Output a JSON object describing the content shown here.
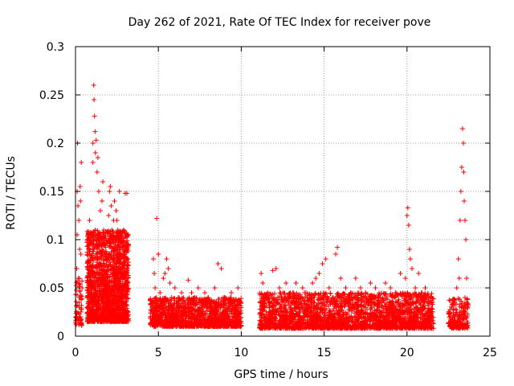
{
  "chart_data": {
    "type": "scatter",
    "title": "Day 262 of 2021, Rate Of TEC Index for receiver pove",
    "xlabel": "GPS time / hours",
    "ylabel": "ROTI / TECUs",
    "xlim": [
      0,
      25
    ],
    "ylim": [
      0,
      0.3
    ],
    "x_ticks": [
      0,
      5,
      10,
      15,
      20,
      25
    ],
    "x_tick_labels": [
      "0",
      "5",
      "10",
      "15",
      "20",
      "25"
    ],
    "y_ticks": [
      0,
      0.05,
      0.1,
      0.15,
      0.2,
      0.25,
      0.3
    ],
    "y_tick_labels": [
      "0",
      "0.05",
      "0.1",
      "0.15",
      "0.2",
      "0.25",
      "0.3"
    ],
    "grid": true,
    "legend": "none",
    "marker": "plus",
    "series_color": "#ff0000",
    "points": [
      [
        0.05,
        0.02
      ],
      [
        0.08,
        0.07
      ],
      [
        0.1,
        0.105
      ],
      [
        0.1,
        0.15
      ],
      [
        0.12,
        0.2
      ],
      [
        0.15,
        0.135
      ],
      [
        0.18,
        0.06
      ],
      [
        0.2,
        0.12
      ],
      [
        0.22,
        0.04
      ],
      [
        0.25,
        0.09
      ],
      [
        0.28,
        0.155
      ],
      [
        0.3,
        0.14
      ],
      [
        0.32,
        0.085
      ],
      [
        0.35,
        0.18
      ],
      [
        0.4,
        0.05
      ],
      [
        0.7,
        0.03
      ],
      [
        0.75,
        0.05
      ],
      [
        0.8,
        0.09
      ],
      [
        0.85,
        0.12
      ],
      [
        0.9,
        0.04
      ],
      [
        0.95,
        0.07
      ],
      [
        1.0,
        0.1
      ],
      [
        1.05,
        0.18
      ],
      [
        1.05,
        0.2
      ],
      [
        1.1,
        0.26
      ],
      [
        1.12,
        0.245
      ],
      [
        1.15,
        0.228
      ],
      [
        1.18,
        0.212
      ],
      [
        1.2,
        0.19
      ],
      [
        1.25,
        0.203
      ],
      [
        1.3,
        0.17
      ],
      [
        1.35,
        0.185
      ],
      [
        1.4,
        0.15
      ],
      [
        1.5,
        0.13
      ],
      [
        1.6,
        0.14
      ],
      [
        1.65,
        0.16
      ],
      [
        1.7,
        0.11
      ],
      [
        1.75,
        0.095
      ],
      [
        1.8,
        0.08
      ],
      [
        1.85,
        0.06
      ],
      [
        1.9,
        0.045
      ],
      [
        1.95,
        0.03
      ],
      [
        2.0,
        0.125
      ],
      [
        2.05,
        0.15
      ],
      [
        2.1,
        0.155
      ],
      [
        2.15,
        0.135
      ],
      [
        2.2,
        0.11
      ],
      [
        2.25,
        0.1
      ],
      [
        2.3,
        0.12
      ],
      [
        2.35,
        0.14
      ],
      [
        2.4,
        0.09
      ],
      [
        2.45,
        0.13
      ],
      [
        2.5,
        0.12
      ],
      [
        2.55,
        0.11
      ],
      [
        2.6,
        0.1
      ],
      [
        2.65,
        0.15
      ],
      [
        2.7,
        0.095
      ],
      [
        2.75,
        0.08
      ],
      [
        2.8,
        0.07
      ],
      [
        2.85,
        0.06
      ],
      [
        2.9,
        0.05
      ],
      [
        3.0,
        0.148
      ],
      [
        3.1,
        0.148
      ],
      [
        1.0,
        0.04
      ],
      [
        1.2,
        0.05
      ],
      [
        1.4,
        0.06
      ],
      [
        1.6,
        0.045
      ],
      [
        1.8,
        0.035
      ],
      [
        2.0,
        0.055
      ],
      [
        2.2,
        0.05
      ],
      [
        2.4,
        0.04
      ],
      [
        2.6,
        0.06
      ],
      [
        2.8,
        0.045
      ],
      [
        3.0,
        0.035
      ],
      [
        1.3,
        0.02
      ],
      [
        1.7,
        0.025
      ],
      [
        2.1,
        0.02
      ],
      [
        2.5,
        0.018
      ],
      [
        2.9,
        0.022
      ],
      [
        4.6,
        0.03
      ],
      [
        4.7,
        0.08
      ],
      [
        4.75,
        0.065
      ],
      [
        4.8,
        0.05
      ],
      [
        4.9,
        0.122
      ],
      [
        5.0,
        0.085
      ],
      [
        5.1,
        0.045
      ],
      [
        5.2,
        0.035
      ],
      [
        5.3,
        0.06
      ],
      [
        5.4,
        0.065
      ],
      [
        5.5,
        0.08
      ],
      [
        5.6,
        0.07
      ],
      [
        5.7,
        0.055
      ],
      [
        5.8,
        0.04
      ],
      [
        5.9,
        0.03
      ],
      [
        6.0,
        0.05
      ],
      [
        6.2,
        0.04
      ],
      [
        6.4,
        0.045
      ],
      [
        6.6,
        0.035
      ],
      [
        6.8,
        0.058
      ],
      [
        7.0,
        0.045
      ],
      [
        7.2,
        0.04
      ],
      [
        7.4,
        0.05
      ],
      [
        7.6,
        0.035
      ],
      [
        7.8,
        0.045
      ],
      [
        8.0,
        0.04
      ],
      [
        8.2,
        0.035
      ],
      [
        8.4,
        0.05
      ],
      [
        8.6,
        0.075
      ],
      [
        8.8,
        0.07
      ],
      [
        9.0,
        0.04
      ],
      [
        9.2,
        0.035
      ],
      [
        9.4,
        0.045
      ],
      [
        9.6,
        0.03
      ],
      [
        9.8,
        0.05
      ],
      [
        4.8,
        0.015
      ],
      [
        5.5,
        0.02
      ],
      [
        6.5,
        0.018
      ],
      [
        7.5,
        0.02
      ],
      [
        8.5,
        0.015
      ],
      [
        9.5,
        0.02
      ],
      [
        11.2,
        0.065
      ],
      [
        11.3,
        0.055
      ],
      [
        11.5,
        0.04
      ],
      [
        11.7,
        0.03
      ],
      [
        11.9,
        0.068
      ],
      [
        12.1,
        0.07
      ],
      [
        12.3,
        0.05
      ],
      [
        12.5,
        0.045
      ],
      [
        12.7,
        0.055
      ],
      [
        12.9,
        0.04
      ],
      [
        13.1,
        0.045
      ],
      [
        13.3,
        0.055
      ],
      [
        13.5,
        0.035
      ],
      [
        13.7,
        0.05
      ],
      [
        13.9,
        0.045
      ],
      [
        14.1,
        0.04
      ],
      [
        14.3,
        0.055
      ],
      [
        14.5,
        0.06
      ],
      [
        14.7,
        0.065
      ],
      [
        14.9,
        0.075
      ],
      [
        15.1,
        0.08
      ],
      [
        15.3,
        0.05
      ],
      [
        15.5,
        0.04
      ],
      [
        15.7,
        0.085
      ],
      [
        15.8,
        0.092
      ],
      [
        16.0,
        0.06
      ],
      [
        16.3,
        0.05
      ],
      [
        16.6,
        0.045
      ],
      [
        16.9,
        0.06
      ],
      [
        17.2,
        0.05
      ],
      [
        17.5,
        0.045
      ],
      [
        17.8,
        0.055
      ],
      [
        18.1,
        0.05
      ],
      [
        18.4,
        0.04
      ],
      [
        18.7,
        0.055
      ],
      [
        19.0,
        0.05
      ],
      [
        19.3,
        0.045
      ],
      [
        19.6,
        0.065
      ],
      [
        19.9,
        0.06
      ],
      [
        20.0,
        0.125
      ],
      [
        20.05,
        0.133
      ],
      [
        20.1,
        0.115
      ],
      [
        20.15,
        0.09
      ],
      [
        20.2,
        0.08
      ],
      [
        20.3,
        0.07
      ],
      [
        20.5,
        0.05
      ],
      [
        20.7,
        0.065
      ],
      [
        20.9,
        0.045
      ],
      [
        21.1,
        0.05
      ],
      [
        21.3,
        0.04
      ],
      [
        21.5,
        0.035
      ],
      [
        11.5,
        0.015
      ],
      [
        12.5,
        0.02
      ],
      [
        13.5,
        0.018
      ],
      [
        14.5,
        0.015
      ],
      [
        15.5,
        0.012
      ],
      [
        16.5,
        0.018
      ],
      [
        17.5,
        0.02
      ],
      [
        18.5,
        0.015
      ],
      [
        19.5,
        0.02
      ],
      [
        20.5,
        0.018
      ],
      [
        21.4,
        0.02
      ],
      [
        22.6,
        0.02
      ],
      [
        22.8,
        0.035
      ],
      [
        23.0,
        0.05
      ],
      [
        23.1,
        0.08
      ],
      [
        23.15,
        0.06
      ],
      [
        23.2,
        0.12
      ],
      [
        23.25,
        0.15
      ],
      [
        23.3,
        0.175
      ],
      [
        23.35,
        0.215
      ],
      [
        23.4,
        0.2
      ],
      [
        23.42,
        0.17
      ],
      [
        23.45,
        0.14
      ],
      [
        23.5,
        0.12
      ],
      [
        23.55,
        0.1
      ],
      [
        23.6,
        0.06
      ],
      [
        23.3,
        0.03
      ],
      [
        23.5,
        0.025
      ],
      [
        22.9,
        0.015
      ]
    ],
    "bands": [
      {
        "x_start": 0.0,
        "x_end": 0.4,
        "y_low": 0.01,
        "y_high": 0.06,
        "count": 60
      },
      {
        "x_start": 0.7,
        "x_end": 3.2,
        "y_low": 0.015,
        "y_high": 0.11,
        "count": 1700
      },
      {
        "x_start": 4.5,
        "x_end": 10.0,
        "y_low": 0.01,
        "y_high": 0.04,
        "count": 1300
      },
      {
        "x_start": 11.1,
        "x_end": 21.6,
        "y_low": 0.008,
        "y_high": 0.045,
        "count": 2400
      },
      {
        "x_start": 22.5,
        "x_end": 23.7,
        "y_low": 0.008,
        "y_high": 0.04,
        "count": 180
      }
    ]
  }
}
